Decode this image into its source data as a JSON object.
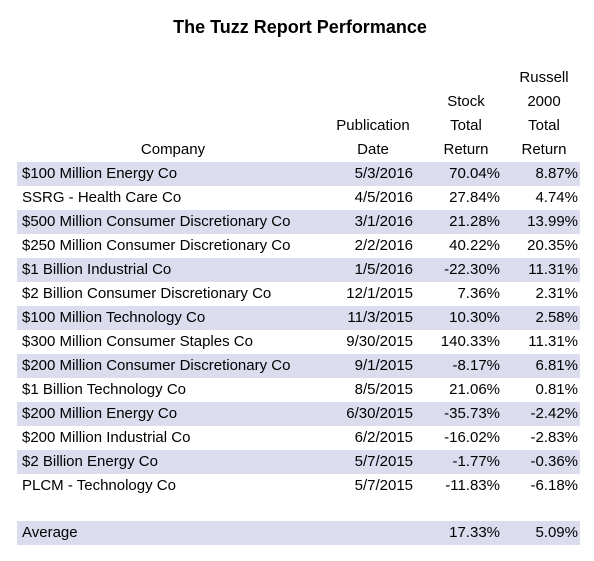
{
  "title": "The Tuzz Report Performance",
  "table": {
    "columns": [
      [
        "Company"
      ],
      [
        "Publication",
        "Date"
      ],
      [
        "Stock",
        "Total",
        "Return"
      ],
      [
        "Russell",
        "2000",
        "Total",
        "Return"
      ]
    ],
    "rows": [
      [
        "$100 Million Energy Co",
        "5/3/2016",
        "70.04%",
        "8.87%"
      ],
      [
        "SSRG - Health Care Co",
        "4/5/2016",
        "27.84%",
        "4.74%"
      ],
      [
        "$500 Million Consumer Discretionary Co",
        "3/1/2016",
        "21.28%",
        "13.99%"
      ],
      [
        "$250 Million Consumer Discretionary Co",
        "2/2/2016",
        "40.22%",
        "20.35%"
      ],
      [
        "$1 Billion Industrial Co",
        "1/5/2016",
        "-22.30%",
        "11.31%"
      ],
      [
        "$2 Billion Consumer Discretionary Co",
        "12/1/2015",
        "7.36%",
        "2.31%"
      ],
      [
        "$100 Million Technology Co",
        "11/3/2015",
        "10.30%",
        "2.58%"
      ],
      [
        "$300 Million Consumer Staples Co",
        "9/30/2015",
        "140.33%",
        "11.31%"
      ],
      [
        "$200 Million Consumer Discretionary Co",
        "9/1/2015",
        "-8.17%",
        "6.81%"
      ],
      [
        "$1 Billion Technology Co",
        "8/5/2015",
        "21.06%",
        "0.81%"
      ],
      [
        "$200 Million Energy Co",
        "6/30/2015",
        "-35.73%",
        "-2.42%"
      ],
      [
        "$200 Million Industrial Co",
        "6/2/2015",
        "-16.02%",
        "-2.83%"
      ],
      [
        "$2 Billion Energy Co",
        "5/7/2015",
        "-1.77%",
        "-0.36%"
      ],
      [
        "PLCM - Technology Co",
        "5/7/2015",
        "-11.83%",
        "-6.18%"
      ]
    ],
    "average": {
      "label": "Average",
      "stock": "17.33%",
      "russell": "5.09%"
    }
  }
}
